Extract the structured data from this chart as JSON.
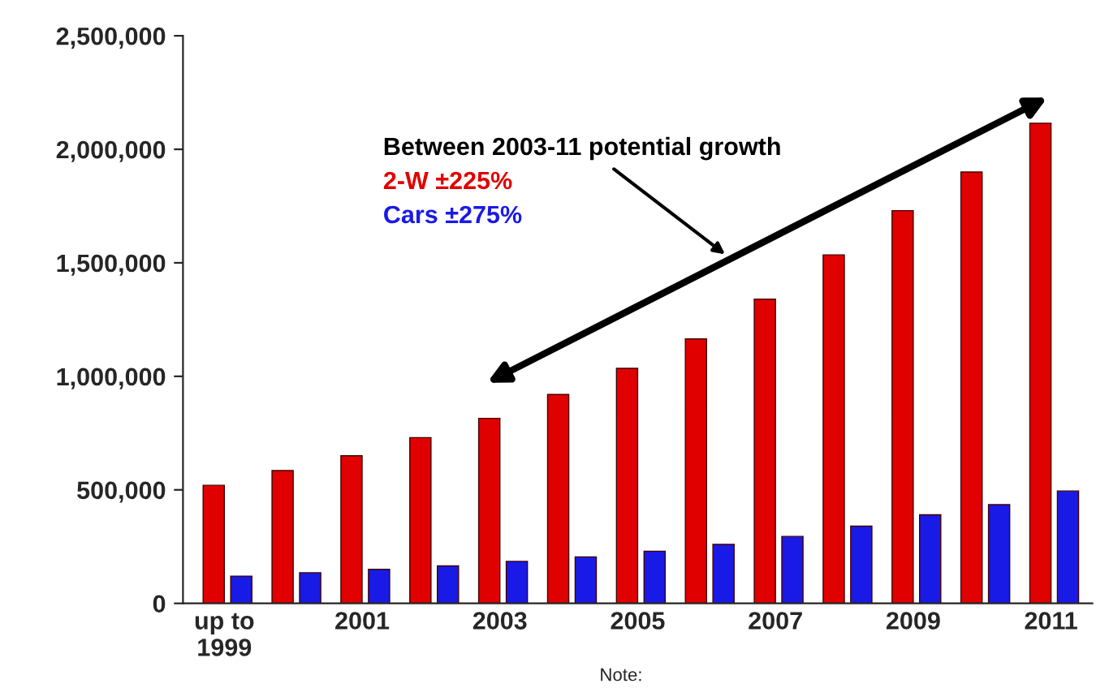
{
  "chart_data": {
    "type": "bar",
    "categories": [
      "up to\n1999",
      null,
      "2001",
      null,
      "2003",
      null,
      "2005",
      null,
      "2007",
      null,
      "2009",
      null,
      "2011"
    ],
    "series": [
      {
        "color": "#e00000",
        "values": [
          520000,
          585000,
          650000,
          730000,
          815000,
          920000,
          1035000,
          1165000,
          1340000,
          1535000,
          1730000,
          1900000,
          2115000
        ]
      },
      {
        "color": "#1a1ae6",
        "values": [
          120000,
          135000,
          150000,
          165000,
          185000,
          205000,
          230000,
          260000,
          295000,
          340000,
          390000,
          435000,
          495000
        ]
      }
    ],
    "ylim": [
      0,
      2500000
    ],
    "yticks": [
      {
        "value": 0,
        "label": "0"
      },
      {
        "value": 500000,
        "label": "500,000"
      },
      {
        "value": 1000000,
        "label": "1,000,000"
      },
      {
        "value": 1500000,
        "label": "1,500,000"
      },
      {
        "value": 2000000,
        "label": "2,000,000"
      },
      {
        "value": 2500000,
        "label": "2,500,000"
      }
    ],
    "annotations": [
      "Between 2003-11 potential growth",
      "2-W ±225%",
      "Cars ±275%",
      "Note:"
    ],
    "grid": false,
    "legend": false
  }
}
